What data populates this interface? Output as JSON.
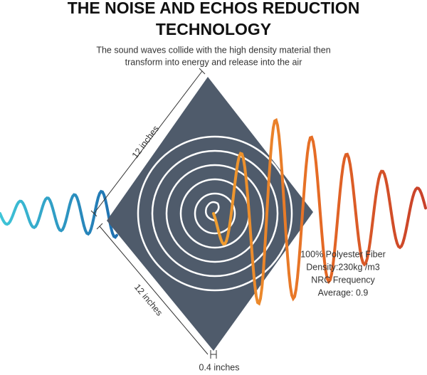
{
  "header": {
    "title_lines": [
      "THE NOISE AND ECHOS REDUCTION",
      "TECHNOLOGY"
    ],
    "subtitle_lines": [
      "The sound waves collide with the high density material then",
      "transform into energy and release into the air"
    ]
  },
  "dimensions": {
    "upper_edge": "12 inches",
    "lower_edge": "12 inches",
    "thickness": "0.4 inches"
  },
  "specs": [
    "100% Polyester Fiber",
    "Density:230kg /m3",
    "NRC Frequency",
    "Average: 0.9"
  ]
}
